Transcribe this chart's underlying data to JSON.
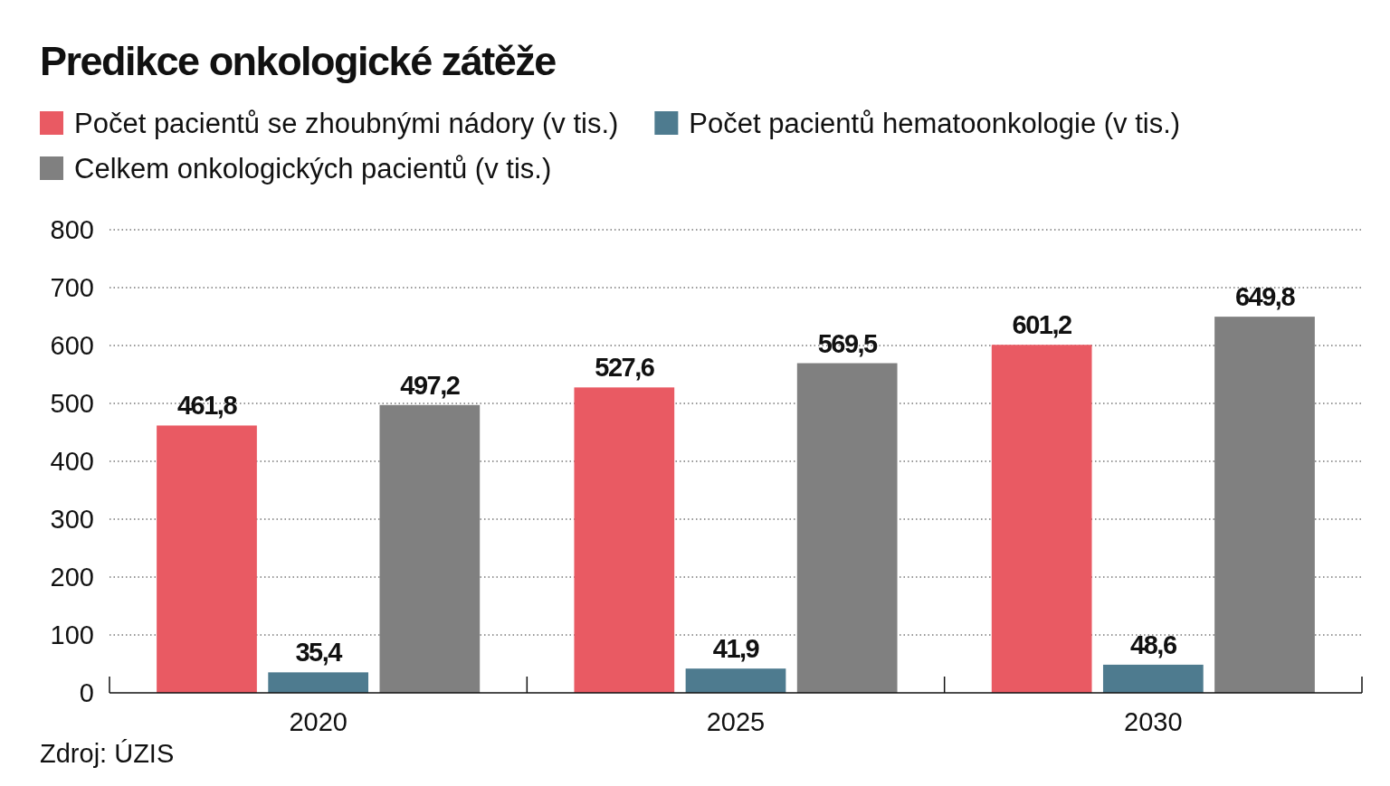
{
  "chart_data": {
    "type": "bar",
    "title": "Predikce onkologické zátěže",
    "categories": [
      "2020",
      "2025",
      "2030"
    ],
    "series": [
      {
        "name": "Počet pacientů se zhoubnými nádory (v tis.)",
        "color": "#e95a63",
        "values": [
          461.8,
          527.6,
          601.2
        ],
        "value_labels": [
          "461,8",
          "527,6",
          "601,2"
        ]
      },
      {
        "name": "Počet pacientů hematoonkologie (v tis.)",
        "color": "#4e7b8f",
        "values": [
          35.4,
          41.9,
          48.6
        ],
        "value_labels": [
          "35,4",
          "41,9",
          "48,6"
        ]
      },
      {
        "name": "Celkem onkologických pacientů (v tis.)",
        "color": "#808080",
        "values": [
          497.2,
          569.5,
          649.8
        ],
        "value_labels": [
          "497,2",
          "569,5",
          "649,8"
        ]
      }
    ],
    "ylim": [
      0,
      800
    ],
    "yticks": [
      0,
      100,
      200,
      300,
      400,
      500,
      600,
      700,
      800
    ],
    "grid": "y",
    "legend": "top",
    "annotations": [
      "Zdroj: ÚZIS"
    ]
  }
}
